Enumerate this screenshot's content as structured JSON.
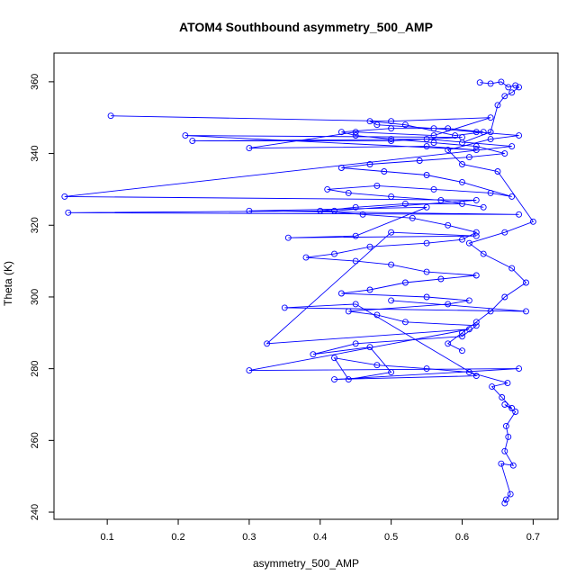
{
  "chart_data": {
    "type": "line",
    "title": "ATOM4 Southbound asymmetry_500_AMP",
    "xlabel": "asymmetry_500_AMP",
    "ylabel": "Theta (K)",
    "xlim": [
      0.025,
      0.735
    ],
    "ylim": [
      238,
      368
    ],
    "x_ticks": [
      "0.1",
      "0.2",
      "0.3",
      "0.4",
      "0.5",
      "0.6",
      "0.7"
    ],
    "y_ticks": [
      "240",
      "260",
      "280",
      "300",
      "320",
      "340",
      "360"
    ],
    "grid": false,
    "legend": "none",
    "color": "#0000ff",
    "markers": "open-circle",
    "series": [
      {
        "x": [
          0.66,
          0.662,
          0.668,
          0.655,
          0.672,
          0.66,
          0.665,
          0.662,
          0.675,
          0.66,
          0.67,
          0.656,
          0.642,
          0.664,
          0.61,
          0.55,
          0.48,
          0.42,
          0.44,
          0.5,
          0.47,
          0.39,
          0.45,
          0.6,
          0.62,
          0.52,
          0.48,
          0.44,
          0.58,
          0.61,
          0.55,
          0.43,
          0.47,
          0.52,
          0.57,
          0.62,
          0.55,
          0.5,
          0.45,
          0.38,
          0.42,
          0.47,
          0.55,
          0.6,
          0.62,
          0.58,
          0.53,
          0.46,
          0.4,
          0.45,
          0.52,
          0.6,
          0.63,
          0.57,
          0.5,
          0.44,
          0.41,
          0.48,
          0.56,
          0.64,
          0.67,
          0.6,
          0.55,
          0.49,
          0.43,
          0.47,
          0.54,
          0.61,
          0.66,
          0.62,
          0.56,
          0.5,
          0.45,
          0.43,
          0.5,
          0.58,
          0.63,
          0.59,
          0.52,
          0.47,
          0.48,
          0.56,
          0.62,
          0.68,
          0.64,
          0.58,
          0.6,
          0.65,
          0.7,
          0.66,
          0.61,
          0.63,
          0.67,
          0.69,
          0.66,
          0.64,
          0.62,
          0.6,
          0.58,
          0.6
        ],
        "y": [
          242.5,
          243.5,
          245,
          253.5,
          253,
          257,
          261,
          264,
          268,
          270,
          269,
          272,
          275,
          276,
          279,
          280,
          281,
          283,
          277,
          279,
          286,
          284,
          287,
          289,
          292,
          293,
          295,
          296,
          298,
          299,
          300,
          301,
          302,
          304,
          305,
          306,
          307,
          309,
          310,
          311,
          312,
          314,
          315,
          316,
          318,
          320,
          322,
          323,
          324,
          325,
          326,
          326,
          325,
          327,
          328,
          329,
          330,
          331,
          330,
          329,
          328,
          332,
          334,
          335,
          336,
          337,
          338,
          339,
          340,
          342,
          343,
          344,
          345,
          346,
          347,
          347,
          346,
          345,
          348,
          349,
          348,
          347,
          346,
          345,
          344,
          341,
          337,
          335,
          321,
          318,
          315,
          312,
          308,
          304,
          300,
          296,
          293,
          290,
          287,
          285
        ]
      },
      {
        "x": [
          0.105,
          0.5,
          0.64,
          0.56,
          0.45,
          0.3,
          0.55,
          0.62,
          0.21,
          0.6,
          0.5,
          0.22,
          0.55,
          0.67,
          0.04,
          0.62,
          0.42,
          0.045,
          0.68,
          0.3,
          0.55,
          0.45,
          0.355,
          0.62,
          0.5,
          0.325,
          0.61,
          0.3,
          0.68,
          0.42,
          0.62,
          0.45,
          0.35,
          0.69,
          0.5
        ],
        "y": [
          350.5,
          349,
          350,
          345,
          346,
          341.5,
          342,
          341,
          345,
          344.5,
          343.5,
          343.5,
          344,
          342,
          328,
          327,
          324,
          323.5,
          323,
          324,
          325,
          317,
          316.5,
          317,
          318,
          287,
          291,
          279.5,
          280,
          277,
          278,
          298,
          297,
          296,
          299
        ]
      },
      {
        "x": [
          0.625,
          0.64,
          0.655,
          0.665,
          0.675,
          0.68,
          0.67,
          0.66,
          0.65,
          0.64,
          0.6
        ],
        "y": [
          359.8,
          359.5,
          360,
          358.5,
          359,
          358.5,
          357,
          356,
          353.5,
          346,
          343
        ]
      }
    ]
  }
}
